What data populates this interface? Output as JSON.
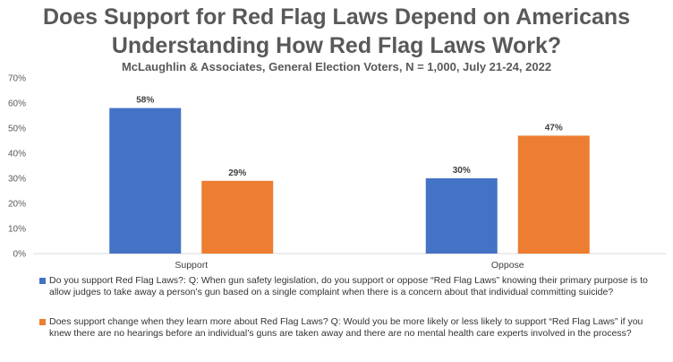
{
  "chart_data": {
    "type": "bar",
    "title_line1": "Does Support for Red Flag Laws Depend on Americans",
    "title_line2": "Understanding How Red Flag Laws Work?",
    "subtitle": "McLaughlin & Associates, General Election Voters, N = 1,000, July 21-24, 2022",
    "categories": [
      "Support",
      "Oppose"
    ],
    "series": [
      {
        "name": "Do you support Red Flag Laws?: Q: When gun safety legislation, do you support or oppose “Red Flag Laws” knowing their primary purpose is to allow judges to take away a person’s gun based on a single complaint when there is a concern about that individual committing suicide?",
        "values": [
          58,
          30
        ],
        "labels": [
          "58%",
          "30%"
        ],
        "color": "#4472C4"
      },
      {
        "name": "Does support change when they learn more about Red Flag Laws? Q: Would you be more likely or less likely to support “Red Flag Laws” if you knew there are no hearings before an individual’s guns are taken away and there are no mental health care experts involved in the process?",
        "values": [
          29,
          47
        ],
        "labels": [
          "29%",
          "47%"
        ],
        "color": "#ED7D31"
      }
    ],
    "ylim": [
      0,
      70
    ],
    "yticks": [
      0,
      10,
      20,
      30,
      40,
      50,
      60,
      70
    ],
    "ytick_labels": [
      "0%",
      "10%",
      "20%",
      "30%",
      "40%",
      "50%",
      "60%",
      "70%"
    ],
    "xlabel": "",
    "ylabel": "",
    "grid": false,
    "legend_position": "bottom"
  }
}
